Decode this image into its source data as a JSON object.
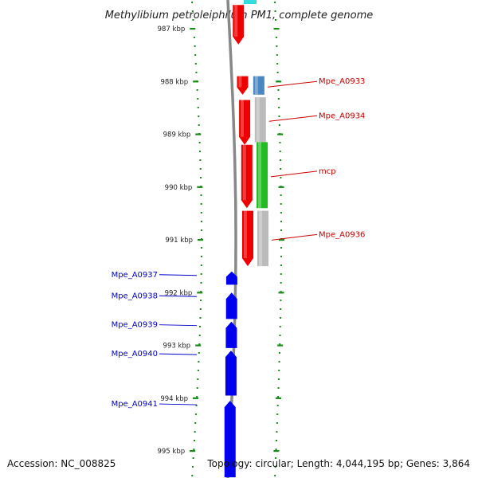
{
  "title": "Methylibium petroleiphilum PM1, complete genome",
  "footer": {
    "accession": "Accession: NC_008825",
    "info": "Topology: circular; Length: 4,044,195 bp; Genes: 3,864"
  },
  "axis": {
    "unit": "kbp",
    "ticks": [
      {
        "kbp": 987,
        "label": "987 kbp"
      },
      {
        "kbp": 988,
        "label": "988 kbp"
      },
      {
        "kbp": 989,
        "label": "989 kbp"
      },
      {
        "kbp": 990,
        "label": "990 kbp"
      },
      {
        "kbp": 991,
        "label": "991 kbp"
      },
      {
        "kbp": 992,
        "label": "992 kbp"
      },
      {
        "kbp": 993,
        "label": "993 kbp"
      },
      {
        "kbp": 994,
        "label": "994 kbp"
      },
      {
        "kbp": 995,
        "label": "995 kbp"
      }
    ]
  },
  "colors": {
    "forward": "#ee0000",
    "reverse": "#0000ee",
    "backbone": "#888888",
    "ticks": "#1a8a1a",
    "cds_blue": "#4a86c0",
    "cds_gray": "#bbbbbb",
    "cds_green": "#22bb22",
    "cyan": "#33dddd"
  },
  "genes_forward": [
    {
      "start": 986.55,
      "end": 987.3,
      "label": ""
    },
    {
      "start": 987.9,
      "end": 988.25,
      "label": ""
    },
    {
      "start": 988.35,
      "end": 989.2,
      "label": ""
    },
    {
      "start": 989.2,
      "end": 990.4,
      "label": ""
    },
    {
      "start": 990.45,
      "end": 991.5,
      "label": ""
    }
  ],
  "features_fwd_cds": [
    {
      "start": 987.9,
      "end": 988.25,
      "kind": "cds_blue",
      "label": "Mpe_A0933"
    },
    {
      "start": 988.3,
      "end": 989.15,
      "kind": "cds_gray",
      "label": "Mpe_A0934"
    },
    {
      "start": 989.15,
      "end": 990.4,
      "kind": "cds_green",
      "label": "mcp"
    },
    {
      "start": 990.45,
      "end": 991.5,
      "kind": "cds_gray",
      "label": "Mpe_A0936"
    }
  ],
  "genes_reverse": [
    {
      "start": 991.6,
      "end": 991.85,
      "label": "Mpe_A0937"
    },
    {
      "start": 992.0,
      "end": 992.5,
      "label": "Mpe_A0938"
    },
    {
      "start": 992.55,
      "end": 993.05,
      "label": "Mpe_A0939"
    },
    {
      "start": 993.1,
      "end": 993.95,
      "label": "Mpe_A0940"
    },
    {
      "start": 994.05,
      "end": 995.5,
      "label": "Mpe_A0941"
    }
  ]
}
